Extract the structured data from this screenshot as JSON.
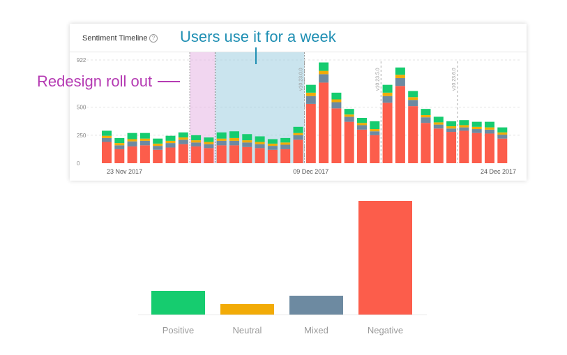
{
  "timeline": {
    "title": "Sentiment Timeline",
    "help_icon": "question-circle-icon"
  },
  "annotations": {
    "users_week": "Users use it for a week",
    "redesign": "Redesign roll out"
  },
  "colors": {
    "positive": "#16cc6f",
    "neutral": "#f2ab07",
    "mixed": "#6d8aa1",
    "negative": "#fc5d4b",
    "users_band": "#9ecde0",
    "redesign_band": "#e6b5e3",
    "users_text": "#1f8fb3",
    "redesign_text": "#b53bb3"
  },
  "chart_data": [
    {
      "type": "bar",
      "stacked": true,
      "title": "Sentiment Timeline",
      "y_ticks": [
        0,
        250,
        500,
        922
      ],
      "ylim": [
        0,
        922
      ],
      "x_tick_labels": [
        {
          "index": 0,
          "label": "23 Nov 2017"
        },
        {
          "index": 16,
          "label": "09 Dec 2017"
        },
        {
          "index": 31,
          "label": "24 Dec 2017"
        }
      ],
      "version_markers": [
        {
          "index": 15,
          "label": "v10.23.0.0"
        },
        {
          "index": 21,
          "label": "v10.23.5.0"
        },
        {
          "index": 27,
          "label": "v10.23.6.0"
        }
      ],
      "bands": [
        {
          "name": "redesign",
          "from_index": 7,
          "to_index": 8
        },
        {
          "name": "users_week",
          "from_index": 9,
          "to_index": 15
        }
      ],
      "series": [
        {
          "name": "Negative",
          "values": [
            190,
            125,
            150,
            160,
            120,
            140,
            170,
            150,
            135,
            160,
            160,
            145,
            135,
            120,
            125,
            210,
            530,
            720,
            490,
            370,
            300,
            250,
            540,
            690,
            510,
            360,
            310,
            280,
            290,
            270,
            265,
            220
          ]
        },
        {
          "name": "Mixed",
          "values": [
            35,
            35,
            45,
            40,
            35,
            40,
            40,
            35,
            35,
            40,
            40,
            40,
            35,
            35,
            40,
            40,
            70,
            75,
            55,
            45,
            40,
            35,
            60,
            70,
            55,
            50,
            35,
            30,
            30,
            35,
            35,
            35
          ]
        },
        {
          "name": "Neutral",
          "values": [
            20,
            20,
            20,
            20,
            20,
            20,
            20,
            20,
            20,
            20,
            25,
            20,
            20,
            20,
            20,
            20,
            30,
            30,
            25,
            20,
            20,
            20,
            30,
            30,
            25,
            20,
            20,
            20,
            20,
            20,
            20,
            20
          ]
        },
        {
          "name": "Positive",
          "values": [
            45,
            45,
            55,
            50,
            45,
            45,
            45,
            45,
            40,
            55,
            60,
            55,
            50,
            40,
            40,
            55,
            70,
            75,
            60,
            50,
            45,
            70,
            70,
            65,
            55,
            55,
            50,
            45,
            45,
            45,
            50,
            45
          ]
        }
      ]
    },
    {
      "type": "bar",
      "categories": [
        "Positive",
        "Neutral",
        "Mixed",
        "Negative"
      ],
      "values": [
        34,
        15,
        27,
        163
      ],
      "ylim": [
        0,
        163
      ]
    }
  ]
}
